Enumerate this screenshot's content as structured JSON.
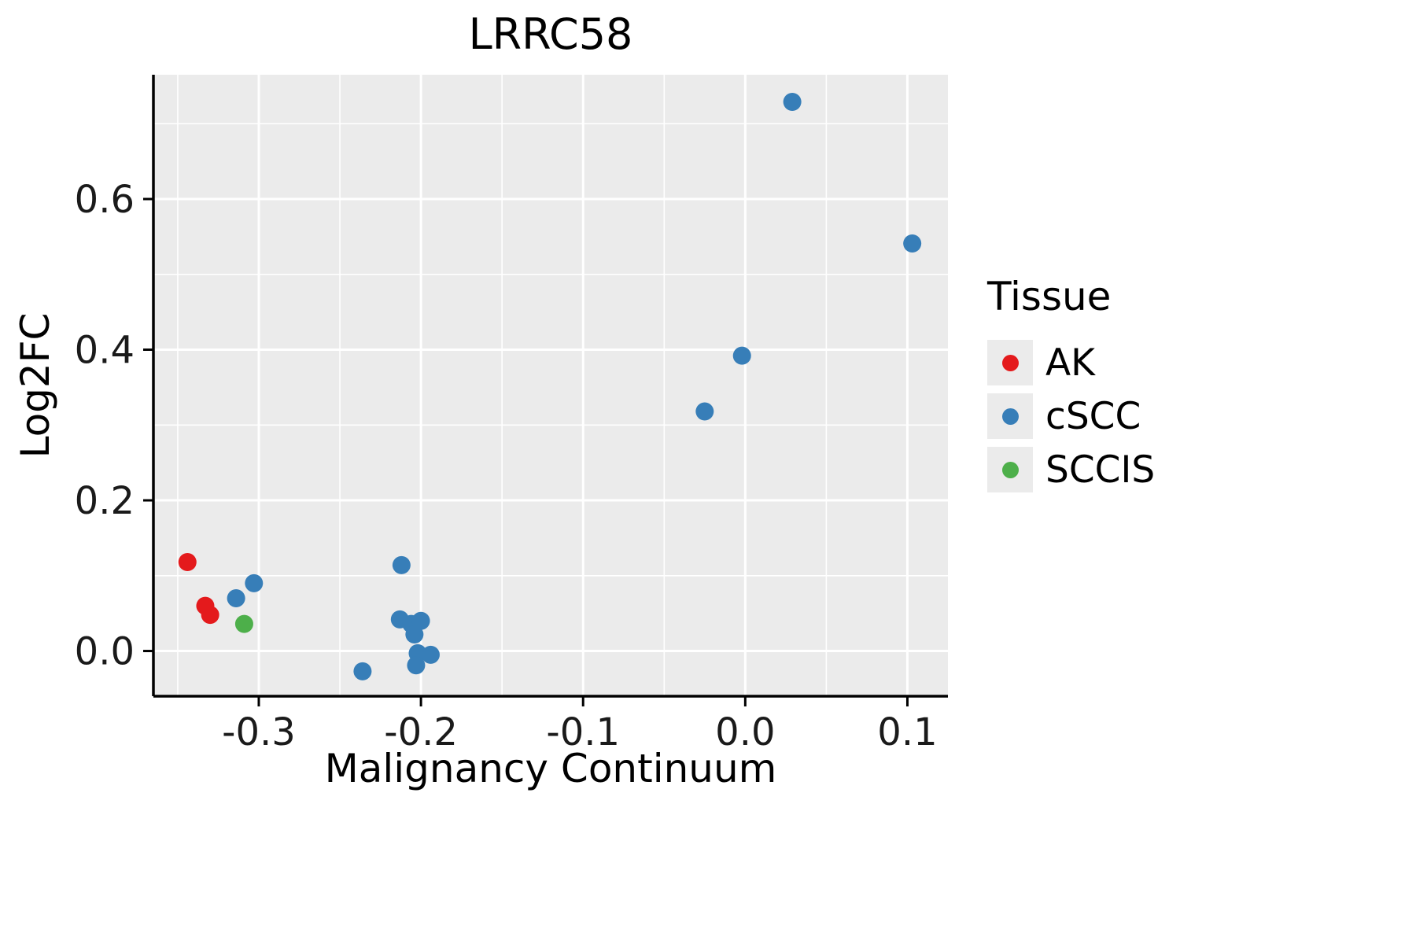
{
  "chart_data": {
    "type": "scatter",
    "title": "LRRC58",
    "xlabel": "Malignancy Continuum",
    "ylabel": "Log2FC",
    "xlim": [
      -0.365,
      0.125
    ],
    "ylim": [
      -0.06,
      0.765
    ],
    "x_ticks": [
      -0.3,
      -0.2,
      -0.1,
      0.0,
      0.1
    ],
    "y_ticks": [
      0.0,
      0.2,
      0.4,
      0.6
    ],
    "x_minor_ticks": [
      -0.35,
      -0.25,
      -0.15,
      -0.05,
      0.05
    ],
    "y_minor_ticks": [
      0.1,
      0.3,
      0.5,
      0.7
    ],
    "grid": true,
    "panel_background": "#EBEBEB",
    "grid_color": "#FFFFFF",
    "axis_color": "#000000",
    "legend_title": "Tissue",
    "legend_position": "right",
    "series": [
      {
        "name": "AK",
        "color": "#E41A1C",
        "points": [
          [
            -0.344,
            0.118
          ],
          [
            -0.333,
            0.06
          ],
          [
            -0.33,
            0.048
          ]
        ]
      },
      {
        "name": "cSCC",
        "color": "#377EB8",
        "points": [
          [
            -0.314,
            0.07
          ],
          [
            -0.303,
            0.09
          ],
          [
            -0.236,
            -0.027
          ],
          [
            -0.212,
            0.114
          ],
          [
            -0.213,
            0.042
          ],
          [
            -0.206,
            0.036
          ],
          [
            -0.204,
            0.022
          ],
          [
            -0.2,
            0.04
          ],
          [
            -0.202,
            -0.003
          ],
          [
            -0.203,
            -0.019
          ],
          [
            -0.194,
            -0.005
          ],
          [
            -0.025,
            0.318
          ],
          [
            -0.002,
            0.392
          ],
          [
            0.029,
            0.729
          ],
          [
            0.103,
            0.541
          ]
        ]
      },
      {
        "name": "SCCIS",
        "color": "#4DAF4A",
        "points": [
          [
            -0.309,
            0.036
          ]
        ]
      }
    ]
  }
}
